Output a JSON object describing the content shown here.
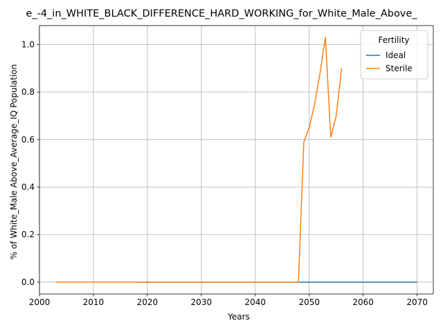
{
  "chart_data": {
    "type": "line",
    "title": "e_-4_in_WHITE_BLACK_DIFFERENCE_HARD_WORKING_for_White_Male_Above_",
    "xlabel": "Years",
    "ylabel": "% of White_Male Above_Average_IQ Population",
    "xlim": [
      2000,
      2073
    ],
    "ylim": [
      -0.05,
      1.08
    ],
    "xticks": [
      2000,
      2010,
      2020,
      2030,
      2040,
      2050,
      2060,
      2070
    ],
    "yticks": [
      0.0,
      0.2,
      0.4,
      0.6,
      0.8,
      1.0
    ],
    "xtick_labels": [
      "2000",
      "2010",
      "2020",
      "2030",
      "2040",
      "2050",
      "2060",
      "2070"
    ],
    "ytick_labels": [
      "0.0",
      "0.2",
      "0.4",
      "0.6",
      "0.8",
      "1.0"
    ],
    "grid": true,
    "legend": {
      "title": "Fertility",
      "placement": "top-right"
    },
    "series": [
      {
        "name": "Ideal",
        "color": "#1f77b4",
        "x": [
          2018,
          2030,
          2040,
          2050,
          2060,
          2070
        ],
        "y": [
          0,
          0,
          0,
          0,
          0,
          0
        ]
      },
      {
        "name": "Sterile",
        "color": "#ff7f0e",
        "x": [
          2003,
          2010,
          2020,
          2030,
          2040,
          2048,
          2049,
          2050,
          2051,
          2052,
          2053,
          2054,
          2055,
          2056
        ],
        "y": [
          0,
          0,
          0,
          0,
          0,
          0,
          0.59,
          0.65,
          0.75,
          0.88,
          1.03,
          0.61,
          0.7,
          0.9
        ]
      }
    ]
  }
}
